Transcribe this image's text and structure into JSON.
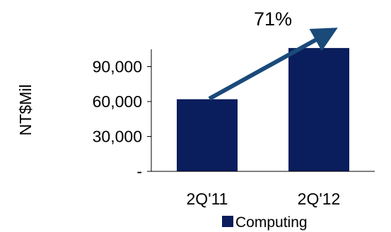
{
  "chart_data": {
    "type": "bar",
    "categories": [
      "2Q'11",
      "2Q'12"
    ],
    "series": [
      {
        "name": "Computing",
        "values": [
          62000,
          106000
        ]
      }
    ],
    "ylabel": "NT$Mil",
    "xlabel": "",
    "ylim": [
      0,
      120000
    ],
    "y_ticks": [
      {
        "value": 0,
        "label": "-"
      },
      {
        "value": 30000,
        "label": "30,000"
      },
      {
        "value": 60000,
        "label": "60,000"
      },
      {
        "value": 90000,
        "label": "90,000"
      }
    ],
    "annotation": {
      "text": "71%",
      "kind": "growth-arrow"
    },
    "legend_position": "bottom-center",
    "grid": false
  },
  "colors": {
    "bar": "#0a1d5c",
    "arrow": "#1a4a7a",
    "axis": "#000000"
  }
}
